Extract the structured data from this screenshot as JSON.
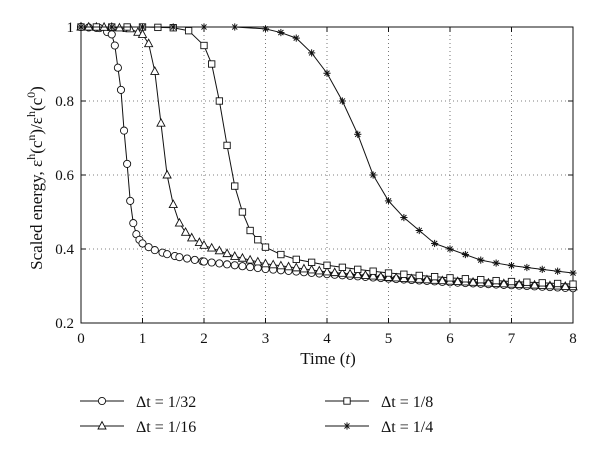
{
  "chart_data": {
    "type": "line",
    "title": "",
    "xlabel": "Time (",
    "xlabel_var": "t",
    "xlabel_close": ")",
    "ylabel": "Scaled energy, ε",
    "ylabel_sup_h1": "h",
    "ylabel_mid1": "(c",
    "ylabel_sup_n": "n",
    "ylabel_mid2": ")/ε",
    "ylabel_sup_h2": "h",
    "ylabel_mid3": "(c",
    "ylabel_sup_0": "0",
    "ylabel_close": ")",
    "xlim": [
      0,
      8
    ],
    "ylim": [
      0.2,
      1.0
    ],
    "xticks": [
      0,
      1,
      2,
      3,
      4,
      5,
      6,
      7,
      8
    ],
    "xtick_labels": [
      "0",
      "1",
      "2",
      "3",
      "4",
      "5",
      "6",
      "7",
      "8"
    ],
    "yticks": [
      0.2,
      0.4,
      0.6,
      0.8,
      1.0
    ],
    "ytick_labels": [
      "0.2",
      "0.4",
      "0.6",
      "0.8",
      "1"
    ],
    "grid": true,
    "legend_position": "bottom",
    "series": [
      {
        "name": "Δt = 1/32",
        "marker": "circle",
        "x": [
          0,
          0.3,
          0.5,
          0.55,
          0.6,
          0.65,
          0.7,
          0.75,
          0.8,
          0.85,
          0.9,
          0.95,
          1.0,
          1.1,
          1.2,
          1.4,
          1.6,
          2.0,
          2.5,
          3.0,
          4.0,
          5.0,
          6.0,
          7.0,
          8.0
        ],
        "y": [
          1.0,
          0.997,
          0.98,
          0.95,
          0.89,
          0.83,
          0.72,
          0.63,
          0.53,
          0.47,
          0.44,
          0.425,
          0.415,
          0.405,
          0.397,
          0.386,
          0.378,
          0.366,
          0.356,
          0.346,
          0.332,
          0.32,
          0.31,
          0.302,
          0.294
        ]
      },
      {
        "name": "Δt = 1/16",
        "marker": "triangle",
        "x": [
          0,
          0.5,
          0.8,
          1.0,
          1.1,
          1.2,
          1.3,
          1.4,
          1.5,
          1.6,
          1.7,
          1.8,
          2.0,
          2.5,
          3.0,
          4.0,
          5.0,
          6.0,
          7.0,
          8.0
        ],
        "y": [
          1.0,
          0.999,
          0.995,
          0.98,
          0.955,
          0.88,
          0.74,
          0.6,
          0.52,
          0.47,
          0.445,
          0.43,
          0.41,
          0.38,
          0.36,
          0.338,
          0.323,
          0.313,
          0.305,
          0.298
        ]
      },
      {
        "name": "Δt = 1/8",
        "marker": "square",
        "x": [
          0,
          1.0,
          1.5,
          1.75,
          2.0,
          2.125,
          2.25,
          2.375,
          2.5,
          2.625,
          2.75,
          2.875,
          3.0,
          3.25,
          3.5,
          4.0,
          4.5,
          5.0,
          6.0,
          7.0,
          8.0
        ],
        "y": [
          1.0,
          1.0,
          0.998,
          0.99,
          0.95,
          0.9,
          0.8,
          0.68,
          0.57,
          0.5,
          0.45,
          0.425,
          0.405,
          0.385,
          0.372,
          0.356,
          0.345,
          0.335,
          0.322,
          0.312,
          0.305
        ]
      },
      {
        "name": "Δt = 1/4",
        "marker": "asterisk",
        "x": [
          0,
          0.5,
          1.0,
          1.5,
          2.0,
          2.5,
          3.0,
          3.25,
          3.5,
          3.75,
          4.0,
          4.25,
          4.5,
          4.75,
          5.0,
          5.25,
          5.5,
          5.75,
          6.0,
          6.25,
          6.5,
          6.75,
          7.0,
          7.25,
          7.5,
          7.75,
          8.0
        ],
        "y": [
          1.0,
          1.0,
          1.0,
          1.0,
          1.0,
          1.0,
          0.995,
          0.985,
          0.97,
          0.93,
          0.875,
          0.8,
          0.71,
          0.6,
          0.53,
          0.485,
          0.45,
          0.415,
          0.4,
          0.385,
          0.37,
          0.362,
          0.355,
          0.35,
          0.345,
          0.34,
          0.335
        ]
      }
    ]
  }
}
